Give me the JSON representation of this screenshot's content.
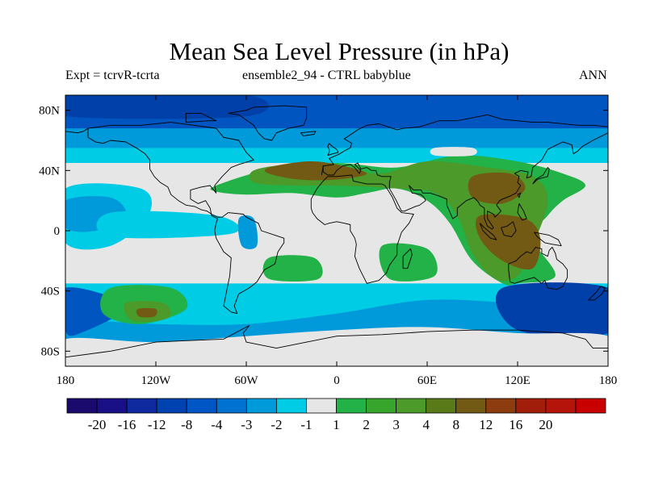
{
  "header": {
    "title": "Mean Sea Level Pressure (in hPa)",
    "left": "Expt = tcrvR-tcrta",
    "center": "ensemble2_94 - CTRL babyblue",
    "right": "ANN"
  },
  "map": {
    "projection": "cylindrical equidistant",
    "lon_range": [
      -180,
      180
    ],
    "lat_range": [
      -90,
      90
    ],
    "lon_ticks": [
      {
        "value": -180,
        "label": "180"
      },
      {
        "value": -120,
        "label": "120W"
      },
      {
        "value": -60,
        "label": "60W"
      },
      {
        "value": 0,
        "label": "0"
      },
      {
        "value": 60,
        "label": "60E"
      },
      {
        "value": 120,
        "label": "120E"
      },
      {
        "value": 180,
        "label": "180"
      }
    ],
    "lat_ticks": [
      {
        "value": 80,
        "label": "80N"
      },
      {
        "value": 40,
        "label": "40N"
      },
      {
        "value": 0,
        "label": "0"
      },
      {
        "value": -40,
        "label": "40S"
      },
      {
        "value": -80,
        "label": "80S"
      }
    ],
    "background_class": "-1 to 1",
    "regions": [
      {
        "name": "arctic-band-light",
        "color": "#00cce6",
        "lons": [
          -180,
          180,
          180,
          -180
        ],
        "lats": [
          90,
          90,
          45,
          45
        ]
      },
      {
        "name": "arctic-band-mid",
        "color": "#0099d9",
        "lons": [
          -180,
          180,
          180,
          -180
        ],
        "lats": [
          90,
          90,
          55,
          55
        ]
      },
      {
        "name": "arctic-core",
        "color": "#0055c0",
        "lons": [
          -180,
          180,
          180,
          -180
        ],
        "lats": [
          90,
          90,
          68,
          68
        ]
      },
      {
        "name": "arctic-deep-america",
        "color": "#0040a8",
        "lons": [
          -180,
          -60,
          -60,
          -180
        ],
        "lats": [
          90,
          90,
          76,
          76
        ]
      },
      {
        "name": "north-pacific-neg",
        "color": "#00cce6",
        "lons": [
          -180,
          -130,
          -125,
          -150,
          -180
        ],
        "lats": [
          28,
          28,
          10,
          -10,
          -8
        ]
      },
      {
        "name": "north-pacific-neg-inner",
        "color": "#0099d9",
        "lons": [
          -180,
          -150,
          -140,
          -160,
          -180
        ],
        "lats": [
          20,
          22,
          10,
          0,
          2
        ]
      },
      {
        "name": "tropical-pacific-band",
        "color": "#00cce6",
        "lons": [
          -150,
          -80,
          -70,
          -150
        ],
        "lats": [
          12,
          10,
          -2,
          -4
        ]
      },
      {
        "name": "south-america-neg",
        "color": "#0099d9",
        "lons": [
          -65,
          -55,
          -53,
          -63
        ],
        "lats": [
          8,
          8,
          -10,
          -10
        ]
      },
      {
        "name": "southern-ocean-band",
        "color": "#00cce6",
        "lons": [
          -180,
          180,
          180,
          -180
        ],
        "lats": [
          -35,
          -35,
          -78,
          -78
        ]
      },
      {
        "name": "southern-ocean-mid",
        "color": "#0099d9",
        "lons": [
          -180,
          -120,
          -60,
          0,
          60,
          120,
          180,
          180,
          -180
        ],
        "lats": [
          -60,
          -62,
          -62,
          -55,
          -46,
          -48,
          -50,
          -74,
          -74
        ]
      },
      {
        "name": "southern-ocean-deep",
        "color": "#0055c0",
        "lons": [
          -180,
          -140,
          -170,
          -180
        ],
        "lats": [
          -38,
          -50,
          -68,
          -66
        ]
      },
      {
        "name": "tasman-deep",
        "color": "#0040a8",
        "lons": [
          110,
          180,
          180,
          120
        ],
        "lats": [
          -38,
          -38,
          -68,
          -66
        ]
      },
      {
        "name": "antarctic-light",
        "color": "#e6e6e6",
        "lons": [
          -180,
          -120,
          -60,
          0,
          60,
          120,
          180,
          180,
          -180
        ],
        "lats": [
          -72,
          -74,
          -70,
          -66,
          -64,
          -68,
          -70,
          -90,
          -90
        ]
      },
      {
        "name": "south-pacific-pos",
        "color": "#23b247",
        "lons": [
          -150,
          -110,
          -100,
          -130,
          -155
        ],
        "lats": [
          -38,
          -38,
          -52,
          -62,
          -55
        ]
      },
      {
        "name": "south-pacific-pos-core",
        "color": "#4b9a2a",
        "lons": [
          -140,
          -115,
          -112,
          -135
        ],
        "lats": [
          -48,
          -48,
          -58,
          -60
        ]
      },
      {
        "name": "south-pacific-pos-max",
        "color": "#735a14",
        "lons": [
          -132,
          -120,
          -121,
          -131
        ],
        "lats": [
          -52,
          -52,
          -57,
          -57
        ]
      },
      {
        "name": "south-atlantic-pos",
        "color": "#23b247",
        "lons": [
          -45,
          -15,
          -12,
          -45
        ],
        "lats": [
          -18,
          -18,
          -32,
          -32
        ]
      },
      {
        "name": "indian-ocean-pos",
        "color": "#23b247",
        "lons": [
          30,
          60,
          65,
          35
        ],
        "lats": [
          -10,
          -12,
          -30,
          -32
        ]
      },
      {
        "name": "eurasia-pos",
        "color": "#23b247",
        "lons": [
          -80,
          -40,
          0,
          40,
          80,
          120,
          150,
          165,
          150,
          140,
          130,
          145,
          120,
          110,
          90,
          75,
          60,
          40,
          20,
          0,
          -30,
          -60,
          -80
        ],
        "lats": [
          30,
          42,
          45,
          42,
          50,
          46,
          38,
          30,
          20,
          10,
          -5,
          -30,
          -35,
          -35,
          -20,
          5,
          20,
          28,
          25,
          22,
          25,
          24,
          26
        ]
      },
      {
        "name": "eurasia-pos-core",
        "color": "#4b9a2a",
        "lons": [
          -55,
          -30,
          0,
          30,
          60,
          100,
          130,
          140,
          130,
          120,
          105,
          90,
          80,
          65,
          40,
          0,
          -30,
          -55
        ],
        "lats": [
          40,
          44,
          42,
          38,
          46,
          42,
          36,
          20,
          -10,
          -30,
          -32,
          -15,
          10,
          25,
          28,
          30,
          30,
          32
        ]
      },
      {
        "name": "mediterranean-max",
        "color": "#735a14",
        "lons": [
          -45,
          -20,
          0,
          20,
          0,
          -25,
          -45
        ],
        "lats": [
          42,
          46,
          44,
          38,
          34,
          34,
          38
        ]
      },
      {
        "name": "china-max",
        "color": "#735a14",
        "lons": [
          90,
          115,
          125,
          110,
          90
        ],
        "lats": [
          36,
          38,
          28,
          18,
          22
        ]
      },
      {
        "name": "indonesia-max",
        "color": "#735a14",
        "lons": [
          95,
          125,
          135,
          130,
          110,
          95
        ],
        "lats": [
          10,
          8,
          -5,
          -25,
          -20,
          -5
        ]
      },
      {
        "name": "arctic-light-patch",
        "color": "#e6e6e6",
        "lons": [
          65,
          90,
          90,
          65
        ],
        "lats": [
          55,
          55,
          50,
          50
        ]
      }
    ]
  },
  "colorbar": {
    "labels": [
      "-20",
      "-16",
      "-12",
      "-8",
      "-4",
      "-3",
      "-2",
      "-1",
      "1",
      "2",
      "3",
      "4",
      "8",
      "12",
      "16",
      "20"
    ],
    "colors": [
      "#1a0a6e",
      "#190f86",
      "#0f2a9e",
      "#0042b0",
      "#0056c4",
      "#0072d2",
      "#0099d9",
      "#00cce6",
      "#e6e6e6",
      "#23b247",
      "#37a52c",
      "#4b9a2a",
      "#5a7a1a",
      "#735a14",
      "#8c3c0f",
      "#a01e0a",
      "#b4140a",
      "#c80000"
    ]
  }
}
